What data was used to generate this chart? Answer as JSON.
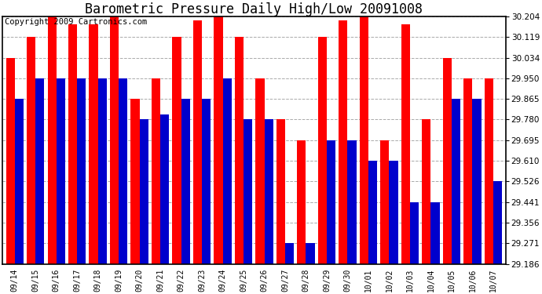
{
  "title": "Barometric Pressure Daily High/Low 20091008",
  "copyright": "Copyright 2009 Cartronics.com",
  "dates": [
    "09/14",
    "09/15",
    "09/16",
    "09/17",
    "09/18",
    "09/19",
    "09/20",
    "09/21",
    "09/22",
    "09/23",
    "09/24",
    "09/25",
    "09/26",
    "09/27",
    "09/28",
    "09/29",
    "09/30",
    "10/01",
    "10/02",
    "10/03",
    "10/04",
    "10/05",
    "10/06",
    "10/07"
  ],
  "high": [
    30.034,
    30.119,
    30.204,
    30.17,
    30.17,
    30.204,
    29.865,
    29.95,
    30.119,
    30.187,
    30.204,
    30.119,
    29.95,
    29.78,
    29.695,
    30.119,
    30.187,
    30.204,
    29.695,
    30.17,
    29.78,
    30.034,
    29.95,
    29.95
  ],
  "low": [
    29.865,
    29.95,
    29.95,
    29.95,
    29.95,
    29.95,
    29.78,
    29.8,
    29.865,
    29.865,
    29.95,
    29.78,
    29.78,
    29.271,
    29.271,
    29.695,
    29.695,
    29.61,
    29.61,
    29.441,
    29.441,
    29.865,
    29.865,
    29.526
  ],
  "high_color": "#ff0000",
  "low_color": "#0000cc",
  "bg_color": "#ffffff",
  "grid_color": "#aaaaaa",
  "ymin": 29.186,
  "ymax": 30.204,
  "yticks": [
    29.186,
    29.271,
    29.356,
    29.441,
    29.526,
    29.61,
    29.695,
    29.78,
    29.865,
    29.95,
    30.034,
    30.119,
    30.204
  ],
  "title_fontsize": 12,
  "copyright_fontsize": 7.5
}
